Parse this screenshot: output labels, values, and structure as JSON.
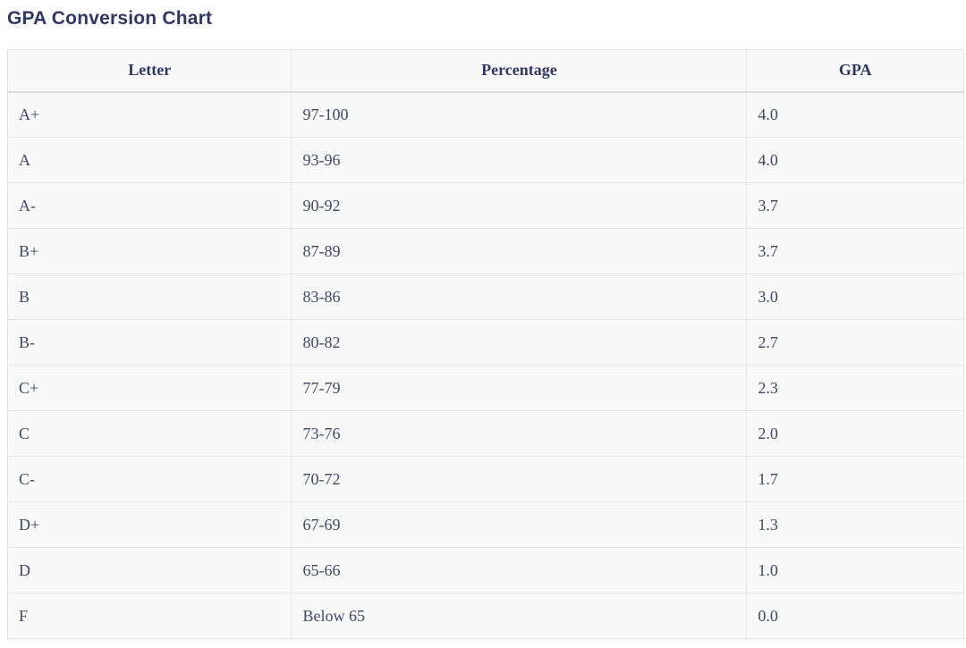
{
  "header": {
    "title": "GPA Conversion Chart"
  },
  "colors": {
    "title_text": "#2f3768",
    "header_text": "#2d3963",
    "body_text": "#3f4769",
    "border": "#e4e4e7",
    "cell_background": "#f9f9fa",
    "page_background": "#ffffff"
  },
  "chart_data": {
    "type": "table",
    "title": "GPA Conversion Chart",
    "columns": [
      "Letter",
      "Percentage",
      "GPA"
    ],
    "rows": [
      [
        "A+",
        "97-100",
        "4.0"
      ],
      [
        "A",
        "93-96",
        "4.0"
      ],
      [
        "A-",
        "90-92",
        "3.7"
      ],
      [
        "B+",
        "87-89",
        "3.7"
      ],
      [
        "B",
        "83-86",
        "3.0"
      ],
      [
        "B-",
        "80-82",
        "2.7"
      ],
      [
        "C+",
        "77-79",
        "2.3"
      ],
      [
        "C",
        "73-76",
        "2.0"
      ],
      [
        "C-",
        "70-72",
        "1.7"
      ],
      [
        "D+",
        "67-69",
        "1.3"
      ],
      [
        "D",
        "65-66",
        "1.0"
      ],
      [
        "F",
        "Below 65",
        "0.0"
      ]
    ]
  }
}
